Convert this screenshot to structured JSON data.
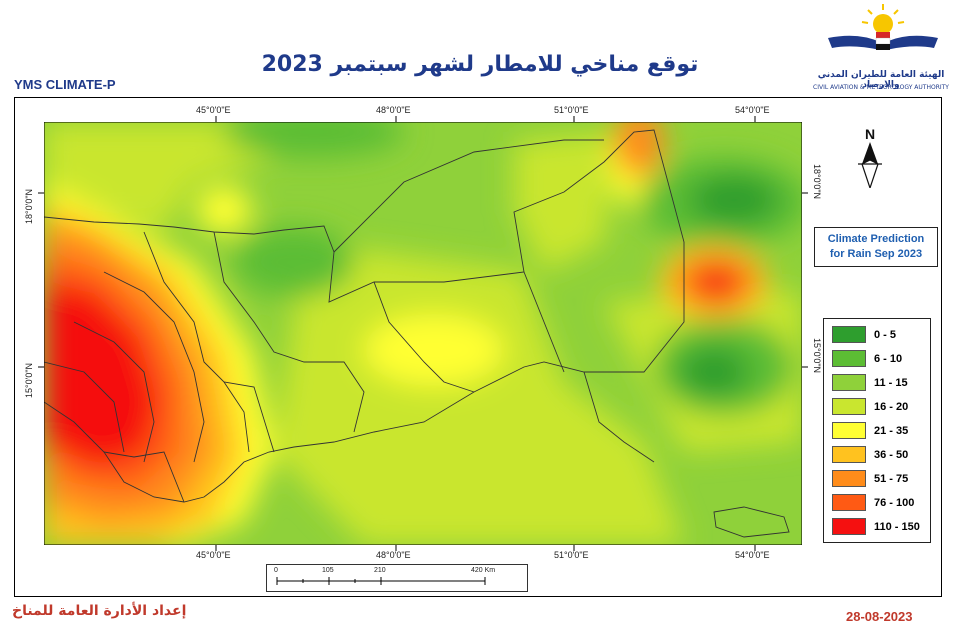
{
  "header": {
    "title": "توقع مناخي للامطار لشهر سبتمبر 2023",
    "product": "YMS CLIMATE-P"
  },
  "logo": {
    "name_ar": "الهيئة العامة للطيران المدني والارصاد",
    "name_en": "CIVIL AVIATION & METEOROLOGY AUTHORITY"
  },
  "map": {
    "top_ticks": [
      "45°0'0\"E",
      "48°0'0\"E",
      "51°0'0\"E",
      "54°0'0\"E"
    ],
    "bottom_ticks": [
      "45°0'0\"E",
      "48°0'0\"E",
      "51°0'0\"E",
      "54°0'0\"E"
    ],
    "left_ticks": [
      "18°0'0\"N",
      "15°0'0\"N"
    ],
    "right_ticks": [
      "18°0'0\"N",
      "15°0'0\"N"
    ],
    "north_arrow": "N"
  },
  "panel": {
    "line1": "Climate Prediction",
    "line2": "for Rain Sep 2023"
  },
  "legend": [
    {
      "label": "0 - 5",
      "color": "#2e9e2e"
    },
    {
      "label": "6 - 10",
      "color": "#5cbd34"
    },
    {
      "label": "11 - 15",
      "color": "#8fd13a"
    },
    {
      "label": "16 - 20",
      "color": "#c9e62f"
    },
    {
      "label": "21 - 35",
      "color": "#ffff33"
    },
    {
      "label": "36 - 50",
      "color": "#ffc21f"
    },
    {
      "label": "51 - 75",
      "color": "#ff8c1a"
    },
    {
      "label": "76 - 100",
      "color": "#ff5a14"
    },
    {
      "label": "110 - 150",
      "color": "#f51010"
    }
  ],
  "scale": {
    "labels": [
      "0",
      "105",
      "210",
      "420 Km"
    ]
  },
  "footer": {
    "prepared_by": "إعداد الأدارة العامة للمناخ",
    "date": "28-08-2023"
  }
}
